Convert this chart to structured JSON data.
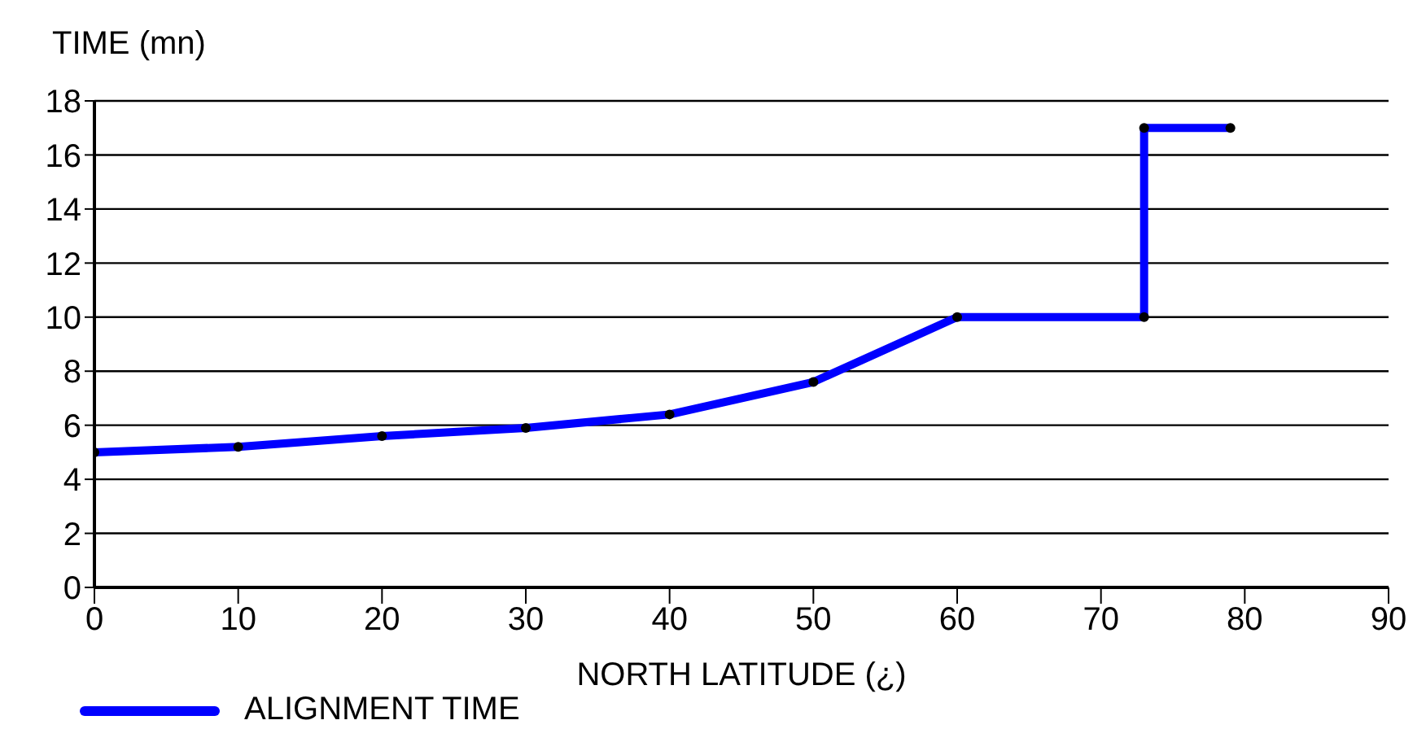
{
  "chart_data": {
    "type": "line",
    "ylabel": "TIME (mn)",
    "xlabel": "NORTH LATITUDE (¿)",
    "xlim": [
      0,
      90
    ],
    "xticks": [
      0,
      10,
      20,
      30,
      40,
      50,
      60,
      70,
      80,
      90
    ],
    "ylim": [
      0,
      18
    ],
    "yticks": [
      0,
      2,
      4,
      6,
      8,
      10,
      12,
      14,
      16,
      18
    ],
    "grid": "y",
    "legend": "bottom left",
    "marker": "circle",
    "line_style": "solid",
    "series": [
      {
        "name": "ALIGNMENT TIME",
        "color": "#0000ff",
        "x": [
          0,
          10,
          20,
          30,
          40,
          50,
          60,
          73,
          73,
          79
        ],
        "values": [
          5.0,
          5.2,
          5.6,
          5.9,
          6.4,
          7.6,
          10,
          10,
          17,
          17
        ]
      }
    ]
  }
}
